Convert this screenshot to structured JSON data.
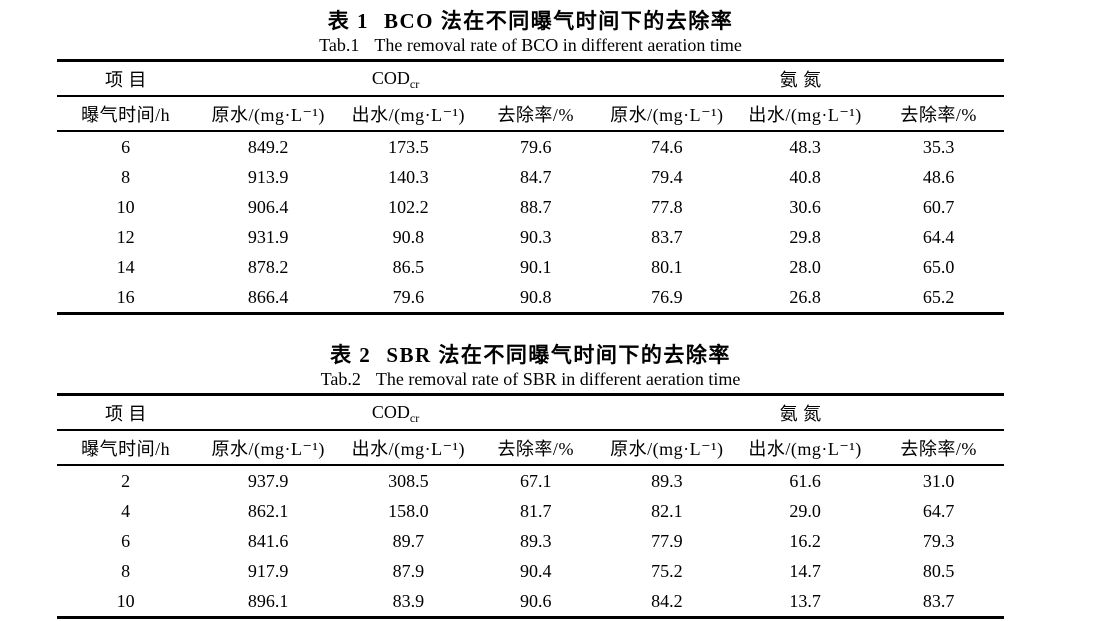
{
  "page": {
    "background_color": "#ffffff",
    "text_color": "#000000",
    "rule_color": "#000000"
  },
  "tables": [
    {
      "caption_zh_label": "表 1",
      "caption_zh_text": "BCO 法在不同曝气时间下的去除率",
      "caption_en_label": "Tab.1",
      "caption_en_text": "The removal rate of BCO in different aeration time",
      "header": {
        "item": "项目",
        "cod_main": "COD",
        "cod_sub": "cr",
        "ammonia": "氨氮",
        "columns": [
          "曝气时间/h",
          "原水/(mg·L⁻¹)",
          "出水/(mg·L⁻¹)",
          "去除率/%",
          "原水/(mg·L⁻¹)",
          "出水/(mg·L⁻¹)",
          "去除率/%"
        ]
      },
      "rows": [
        [
          "6",
          "849.2",
          "173.5",
          "79.6",
          "74.6",
          "48.3",
          "35.3"
        ],
        [
          "8",
          "913.9",
          "140.3",
          "84.7",
          "79.4",
          "40.8",
          "48.6"
        ],
        [
          "10",
          "906.4",
          "102.2",
          "88.7",
          "77.8",
          "30.6",
          "60.7"
        ],
        [
          "12",
          "931.9",
          "90.8",
          "90.3",
          "83.7",
          "29.8",
          "64.4"
        ],
        [
          "14",
          "878.2",
          "86.5",
          "90.1",
          "80.1",
          "28.0",
          "65.0"
        ],
        [
          "16",
          "866.4",
          "79.6",
          "90.8",
          "76.9",
          "26.8",
          "65.2"
        ]
      ]
    },
    {
      "caption_zh_label": "表 2",
      "caption_zh_text": "SBR 法在不同曝气时间下的去除率",
      "caption_en_label": "Tab.2",
      "caption_en_text": "The removal rate of SBR in different aeration time",
      "header": {
        "item": "项目",
        "cod_main": "COD",
        "cod_sub": "cr",
        "ammonia": "氨氮",
        "columns": [
          "曝气时间/h",
          "原水/(mg·L⁻¹)",
          "出水/(mg·L⁻¹)",
          "去除率/%",
          "原水/(mg·L⁻¹)",
          "出水/(mg·L⁻¹)",
          "去除率/%"
        ]
      },
      "rows": [
        [
          "2",
          "937.9",
          "308.5",
          "67.1",
          "89.3",
          "61.6",
          "31.0"
        ],
        [
          "4",
          "862.1",
          "158.0",
          "81.7",
          "82.1",
          "29.0",
          "64.7"
        ],
        [
          "6",
          "841.6",
          "89.7",
          "89.3",
          "77.9",
          "16.2",
          "79.3"
        ],
        [
          "8",
          "917.9",
          "87.9",
          "90.4",
          "75.2",
          "14.7",
          "80.5"
        ],
        [
          "10",
          "896.1",
          "83.9",
          "90.6",
          "84.2",
          "13.7",
          "83.7"
        ]
      ]
    }
  ]
}
